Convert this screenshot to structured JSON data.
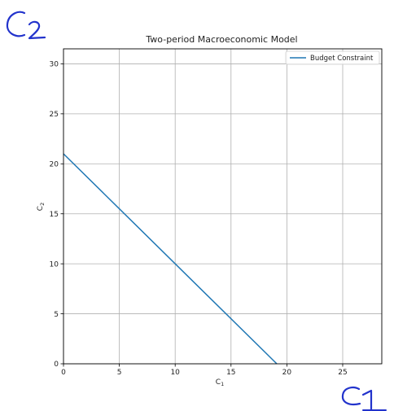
{
  "chart_data": {
    "type": "line",
    "title": "Two-period Macroeconomic Model",
    "xlabel": "C",
    "xlabel_sub": "1",
    "ylabel": "C",
    "ylabel_sub": "2",
    "xlim": [
      0,
      28.5
    ],
    "ylim": [
      0,
      31.5
    ],
    "xticks": [
      0,
      5,
      10,
      15,
      20,
      25
    ],
    "yticks": [
      0,
      5,
      10,
      15,
      20,
      25,
      30
    ],
    "grid": true,
    "legend": "top-right",
    "series": [
      {
        "name": "Budget Constraint",
        "color": "#1f77b4",
        "x": [
          0,
          19.1
        ],
        "y": [
          21,
          0
        ]
      }
    ]
  },
  "annotations": {
    "handwritten_top": "C2",
    "handwritten_bottom": "C1",
    "ink_color": "#2233cc"
  }
}
